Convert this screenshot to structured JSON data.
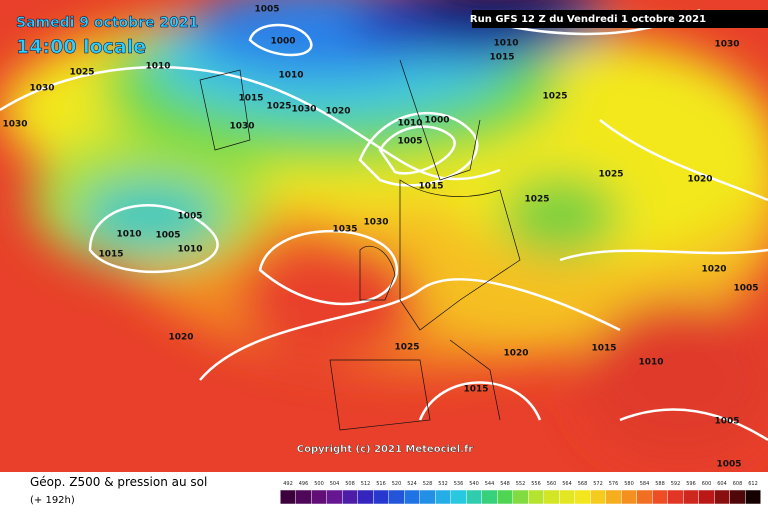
{
  "header": {
    "date": "Samedi 9 octobre 2021",
    "time": "14:00 locale",
    "run": "Run GFS 12 Z du Vendredi 1 octobre 2021"
  },
  "copyright": "Copyright (c) 2021 Meteociel.fr",
  "footer": {
    "title": "Géop. Z500 & pression au sol",
    "subtitle": "(+ 192h)"
  },
  "legend": {
    "ticks": [
      "492",
      "496",
      "500",
      "504",
      "508",
      "512",
      "516",
      "520",
      "524",
      "528",
      "532",
      "536",
      "540",
      "544",
      "548",
      "552",
      "556",
      "560",
      "564",
      "568",
      "572",
      "576",
      "580",
      "584",
      "588",
      "592",
      "596",
      "600",
      "604",
      "608",
      "612"
    ]
  },
  "isobar_labels": [
    "1005",
    "1000",
    "1010",
    "1025",
    "1010",
    "1030",
    "1015",
    "1025",
    "1030",
    "1020",
    "1030",
    "1030",
    "1010",
    "1000",
    "1005",
    "1015",
    "1025",
    "1010",
    "1015",
    "1030",
    "1025",
    "1020",
    "1025",
    "1005",
    "1010",
    "1005",
    "1035",
    "1030",
    "1010",
    "1015",
    "1020",
    "1005",
    "1020",
    "1025",
    "1020",
    "1015",
    "1010",
    "1015",
    "1005",
    "1005"
  ]
}
